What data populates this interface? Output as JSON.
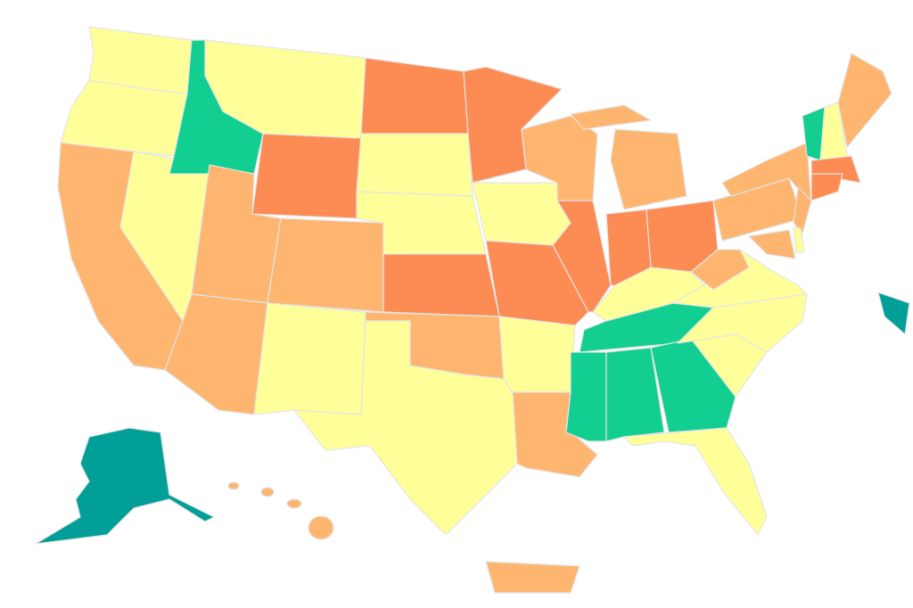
{
  "map": {
    "color_scale": [
      "#019f98",
      "#12ce90",
      "#ffff99",
      "#fdb56f",
      "#fc8c53"
    ]
  }
}
